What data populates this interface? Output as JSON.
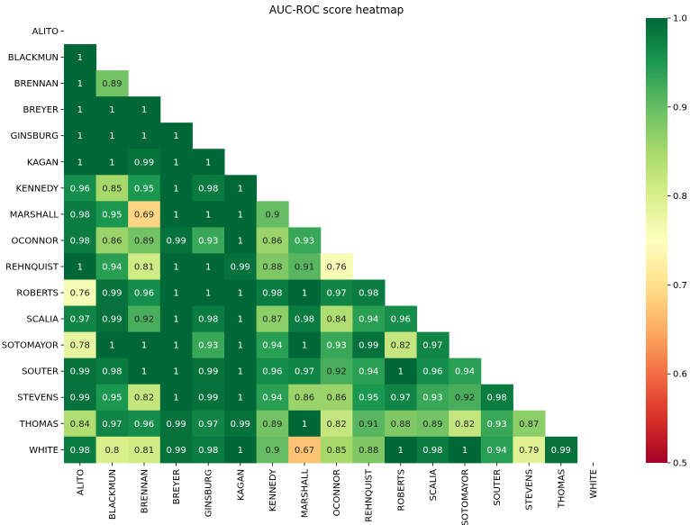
{
  "chart_data": {
    "type": "heatmap",
    "title": "AUC-ROC score heatmap",
    "labels": [
      "ALITO",
      "BLACKMUN",
      "BRENNAN",
      "BREYER",
      "GINSBURG",
      "KAGAN",
      "KENNEDY",
      "MARSHALL",
      "OCONNOR",
      "REHNQUIST",
      "ROBERTS",
      "SCALIA",
      "SOTOMAYOR",
      "SOUTER",
      "STEVENS",
      "THOMAS",
      "WHITE"
    ],
    "values": [
      [],
      [
        1
      ],
      [
        1,
        0.89
      ],
      [
        1,
        1,
        1
      ],
      [
        1,
        1,
        1,
        1
      ],
      [
        1,
        1,
        0.99,
        1,
        1
      ],
      [
        0.96,
        0.85,
        0.95,
        1,
        0.98,
        1
      ],
      [
        0.98,
        0.95,
        0.69,
        1,
        1,
        1,
        0.9
      ],
      [
        0.98,
        0.86,
        0.89,
        0.99,
        0.93,
        1,
        0.86,
        0.93
      ],
      [
        1,
        0.94,
        0.81,
        1,
        1,
        0.99,
        0.88,
        0.91,
        0.76
      ],
      [
        0.76,
        0.99,
        0.96,
        1,
        1,
        1,
        0.98,
        1,
        0.97,
        0.98
      ],
      [
        0.97,
        0.99,
        0.92,
        1,
        0.98,
        1,
        0.87,
        0.98,
        0.84,
        0.94,
        0.96
      ],
      [
        0.78,
        1,
        1,
        1,
        0.93,
        1,
        0.94,
        1,
        0.93,
        0.99,
        0.82,
        0.97
      ],
      [
        0.99,
        0.98,
        1,
        1,
        0.99,
        1,
        0.96,
        0.97,
        0.92,
        0.94,
        1,
        0.96,
        0.94
      ],
      [
        0.99,
        0.95,
        0.82,
        1,
        0.99,
        1,
        0.94,
        0.86,
        0.86,
        0.95,
        0.97,
        0.93,
        0.92,
        0.98
      ],
      [
        0.84,
        0.97,
        0.96,
        0.99,
        0.97,
        0.99,
        0.89,
        1,
        0.82,
        0.91,
        0.88,
        0.89,
        0.82,
        0.93,
        0.87
      ],
      [
        0.98,
        0.8,
        0.81,
        0.99,
        0.98,
        1,
        0.9,
        0.67,
        0.85,
        0.88,
        1,
        0.98,
        1,
        0.94,
        0.79,
        0.99
      ]
    ],
    "vmin": 0.5,
    "vmax": 1.0,
    "colormap": "RdYlGn",
    "mask": "upper-triangle-including-diagonal",
    "colorbar": {
      "ticks": [
        "0.5",
        "0.6",
        "0.7",
        "0.8",
        "0.9",
        "1.0"
      ],
      "position": "right"
    },
    "grid": false
  }
}
